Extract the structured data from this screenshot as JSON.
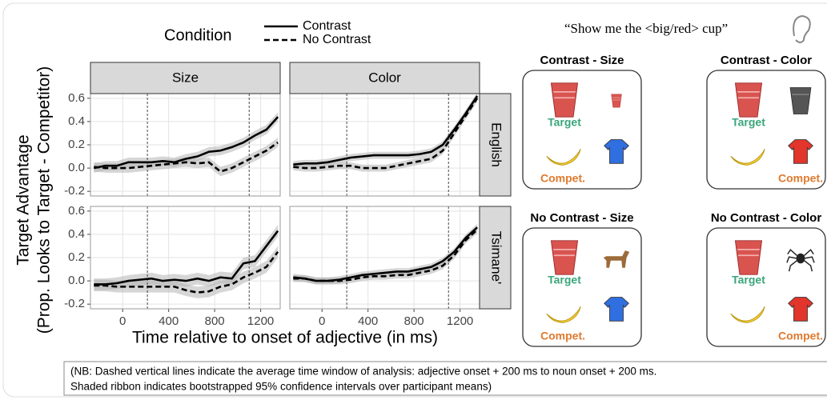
{
  "figure": {
    "legend_title": "Condition",
    "y_label": [
      "Target Advantage",
      "(Prop. Looks to Target - Competitor)"
    ],
    "x_label": "Time relative to onset of adjective (in ms)",
    "note": [
      "(NB: Dashed vertical lines indicate the average time window of analysis: adjective onset + 200 ms to noun onset + 200 ms.",
      "Shaded ribbon indicates bootstrapped 95% confidence intervals over participant means)"
    ]
  },
  "chart_data": [
    {
      "type": "line",
      "facet_col": "Size",
      "x": [
        -250,
        -150,
        -50,
        50,
        150,
        250,
        350,
        450,
        550,
        650,
        750,
        850,
        950,
        1050,
        1150,
        1250,
        1350
      ],
      "xlim": [
        -280,
        1370
      ],
      "xticks": [
        0,
        400,
        800,
        1200
      ],
      "ylim": [
        -0.24,
        0.64
      ],
      "yticks": [
        -0.2,
        {
          "value": 0,
          "label": "0.0"
        },
        0.2,
        0.4,
        0.6
      ],
      "vlines": [
        215,
        1100
      ],
      "grid": true,
      "series": [
        {
          "name": "Contrast",
          "color": "#000000",
          "dash": false,
          "ci": 0.04,
          "values": [
            0.0,
            0.02,
            0.02,
            0.05,
            0.05,
            0.05,
            0.06,
            0.05,
            0.08,
            0.1,
            0.14,
            0.15,
            0.18,
            0.22,
            0.28,
            0.33,
            0.44
          ]
        },
        {
          "name": "No Contrast",
          "color": "#000000",
          "dash": true,
          "ci": 0.04,
          "values": [
            0.01,
            0.0,
            0.0,
            0.0,
            0.01,
            0.02,
            0.03,
            0.04,
            0.05,
            0.04,
            0.05,
            -0.03,
            0.0,
            0.05,
            0.1,
            0.15,
            0.22
          ]
        }
      ]
    },
    {
      "type": "line",
      "facet_col": "Color",
      "facet_row": "English",
      "x": [
        -250,
        -150,
        -50,
        50,
        150,
        250,
        350,
        450,
        550,
        650,
        750,
        850,
        950,
        1050,
        1150,
        1250,
        1350
      ],
      "xlim": [
        -280,
        1370
      ],
      "xticks": [
        0,
        400,
        800,
        1200
      ],
      "ylim": [
        -0.24,
        0.64
      ],
      "yticks": [
        -0.2,
        {
          "value": 0,
          "label": "0.0"
        },
        0.2,
        0.4,
        0.6
      ],
      "vlines": [
        215,
        1100
      ],
      "grid": true,
      "series": [
        {
          "name": "Contrast",
          "color": "#000000",
          "dash": false,
          "ci": 0.03,
          "values": [
            0.03,
            0.04,
            0.04,
            0.05,
            0.07,
            0.09,
            0.1,
            0.11,
            0.11,
            0.11,
            0.11,
            0.12,
            0.14,
            0.2,
            0.33,
            0.47,
            0.62
          ]
        },
        {
          "name": "No Contrast",
          "color": "#000000",
          "dash": true,
          "ci": 0.03,
          "values": [
            0.01,
            0.0,
            0.0,
            0.01,
            0.02,
            0.02,
            0.0,
            0.0,
            0.0,
            0.02,
            0.04,
            0.06,
            0.08,
            0.15,
            0.3,
            0.45,
            0.6
          ]
        }
      ]
    },
    {
      "type": "line",
      "x": [
        -250,
        -150,
        -50,
        50,
        150,
        250,
        350,
        450,
        550,
        650,
        750,
        850,
        950,
        1050,
        1150,
        1250,
        1350
      ],
      "xlim": [
        -280,
        1370
      ],
      "xticks": [
        0,
        400,
        800,
        1200
      ],
      "ylim": [
        -0.24,
        0.64
      ],
      "yticks": [
        -0.2,
        {
          "value": 0,
          "label": "0.0"
        },
        0.2,
        0.4,
        0.6
      ],
      "vlines": [
        215,
        1100
      ],
      "grid": true,
      "series": [
        {
          "name": "Contrast",
          "color": "#000000",
          "dash": false,
          "ci": 0.05,
          "values": [
            -0.03,
            -0.03,
            -0.02,
            0.0,
            0.01,
            0.02,
            0.0,
            0.01,
            0.0,
            0.02,
            0.0,
            0.03,
            0.02,
            0.15,
            0.17,
            0.3,
            0.43
          ]
        },
        {
          "name": "No Contrast",
          "color": "#000000",
          "dash": true,
          "ci": 0.05,
          "values": [
            -0.04,
            -0.04,
            -0.05,
            -0.05,
            -0.05,
            -0.05,
            -0.05,
            -0.05,
            -0.08,
            -0.1,
            -0.09,
            -0.05,
            -0.03,
            0.03,
            0.07,
            0.12,
            0.25
          ]
        }
      ]
    },
    {
      "type": "line",
      "facet_row": "Tsimane'",
      "x": [
        -250,
        -150,
        -50,
        50,
        150,
        250,
        350,
        450,
        550,
        650,
        750,
        850,
        950,
        1050,
        1150,
        1250,
        1350
      ],
      "xlim": [
        -280,
        1370
      ],
      "xticks": [
        0,
        400,
        800,
        1200
      ],
      "ylim": [
        -0.24,
        0.64
      ],
      "yticks": [
        -0.2,
        {
          "value": 0,
          "label": "0.0"
        },
        0.2,
        0.4,
        0.6
      ],
      "vlines": [
        215,
        1100
      ],
      "grid": true,
      "series": [
        {
          "name": "Contrast",
          "color": "#000000",
          "dash": false,
          "ci": 0.03,
          "values": [
            0.03,
            0.02,
            0.0,
            0.0,
            0.01,
            0.03,
            0.05,
            0.06,
            0.07,
            0.08,
            0.08,
            0.1,
            0.12,
            0.17,
            0.25,
            0.37,
            0.46
          ]
        },
        {
          "name": "No Contrast",
          "color": "#000000",
          "dash": true,
          "ci": 0.03,
          "values": [
            0.02,
            0.02,
            0.0,
            0.0,
            0.0,
            0.01,
            0.03,
            0.04,
            0.04,
            0.05,
            0.05,
            0.07,
            0.09,
            0.13,
            0.22,
            0.35,
            0.44
          ]
        }
      ]
    }
  ],
  "diagram": {
    "quote": "“Show me the <big/red> cup”",
    "panels": [
      {
        "title": "Contrast - Size",
        "target": "Target",
        "competitor": "Compet."
      },
      {
        "title": "Contrast - Color",
        "target": "Target",
        "competitor": "Compet."
      },
      {
        "title": "No Contrast - Size",
        "target": "Target",
        "competitor": "Compet."
      },
      {
        "title": "No Contrast - Color",
        "target": "Target",
        "competitor": "Compet."
      }
    ]
  }
}
